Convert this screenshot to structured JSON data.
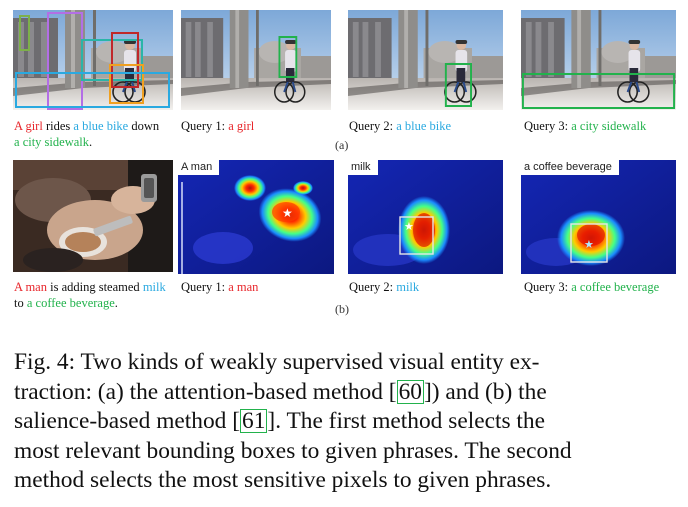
{
  "row_a": {
    "caption": {
      "w1": "A girl",
      "w2": " rides ",
      "w3": "a blue bike",
      "w4": " down ",
      "w5": "a",
      "w6": "city sidewalk",
      "w7": "."
    },
    "queries": [
      {
        "prefix": "Query 1: ",
        "phrase": "a girl"
      },
      {
        "prefix": "Query 2: ",
        "phrase": "a blue bike"
      },
      {
        "prefix": "Query 3: ",
        "phrase": "a city sidewalk"
      }
    ],
    "label": "(a)"
  },
  "row_b": {
    "caption": {
      "w1": "A man",
      "w2": " is adding steamed ",
      "w3": "milk",
      "w4": "to ",
      "w5": "a coffee beverage",
      "w6": "."
    },
    "heatmap_labels": [
      "A man",
      "milk",
      "a coffee beverage"
    ],
    "queries": [
      {
        "prefix": "Query 1: ",
        "phrase": "a man"
      },
      {
        "prefix": "Query 2: ",
        "phrase": "milk"
      },
      {
        "prefix": "Query 3: ",
        "phrase": "a coffee beverage"
      }
    ],
    "label": "(b)"
  },
  "figure_caption": {
    "l1": "Fig. 4: Two kinds of weakly supervised visual entity ex-",
    "l2a": "traction: (a) the attention-based method [",
    "cite1": "60",
    "l2b": "]) and (b) the",
    "l3a": "salience-based method [",
    "cite2": "61",
    "l3b": "]. The first method selects the",
    "l4": "most relevant bounding boxes to given phrases. The second",
    "l5": "method selects the most sensitive pixels to given phrases."
  },
  "colors": {
    "red": "#e8262b",
    "blue": "#2aa9e0",
    "green": "#22b24c",
    "purple": "#b36ee6",
    "orange": "#f0a020",
    "teal": "#2ab5a8",
    "dark_red": "#c0282a"
  }
}
